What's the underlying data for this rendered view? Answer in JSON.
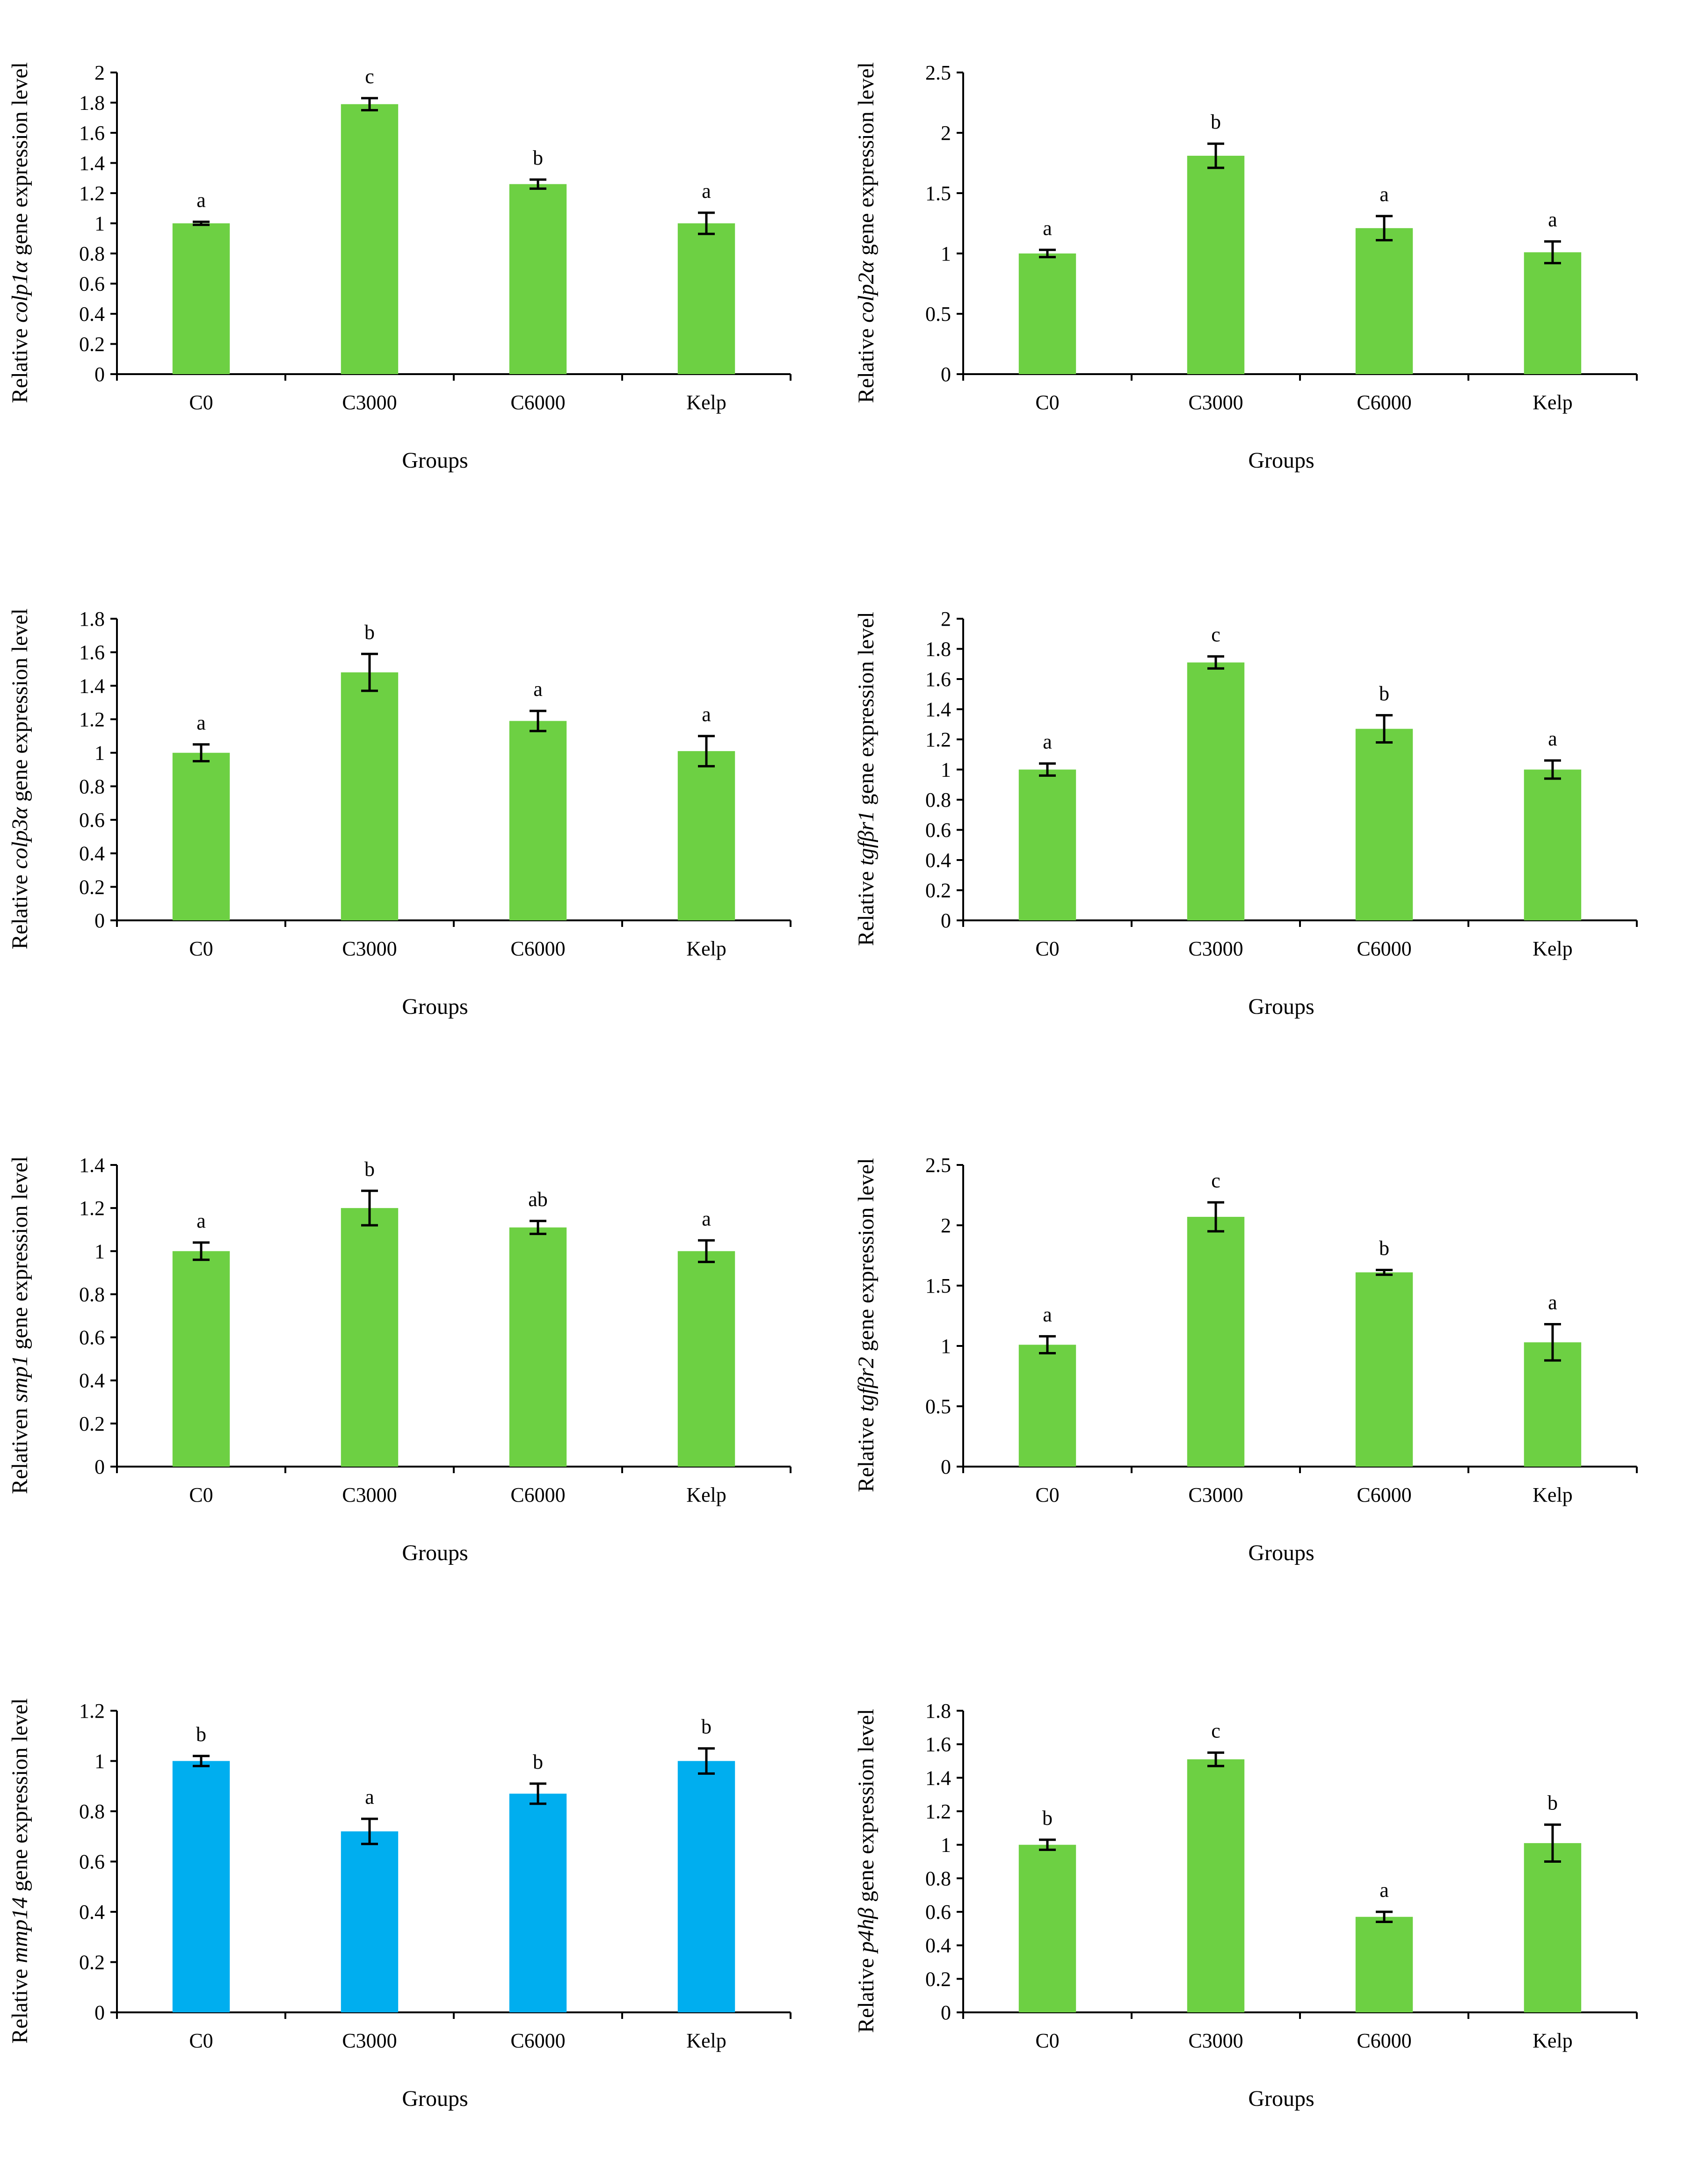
{
  "colors": {
    "green": "#6DD043",
    "blue": "#00AEEF",
    "axis": "#000000"
  },
  "chart_data": [
    {
      "type": "bar",
      "title": "",
      "xlabel": "Groups",
      "ylabel_pre": "Relative ",
      "ylabel_gene": "colp1α",
      "ylabel_post": " gene expression level",
      "categories": [
        "C0",
        "C3000",
        "C6000",
        "Kelp"
      ],
      "values": [
        1.0,
        1.79,
        1.26,
        1.0
      ],
      "errors": [
        0.01,
        0.04,
        0.03,
        0.07
      ],
      "letters": [
        "a",
        "c",
        "b",
        "a"
      ],
      "yticks": [
        "0",
        "0.2",
        "0.4",
        "0.6",
        "0.8",
        "1",
        "1.2",
        "1.4",
        "1.6",
        "1.8",
        "2"
      ],
      "ylim": [
        0,
        2
      ],
      "color": "green"
    },
    {
      "type": "bar",
      "title": "",
      "xlabel": "Groups",
      "ylabel_pre": "Relative ",
      "ylabel_gene": "colp2α",
      "ylabel_post": " gene expression level",
      "categories": [
        "C0",
        "C3000",
        "C6000",
        "Kelp"
      ],
      "values": [
        1.0,
        1.81,
        1.21,
        1.01
      ],
      "errors": [
        0.03,
        0.1,
        0.1,
        0.09
      ],
      "letters": [
        "a",
        "b",
        "a",
        "a"
      ],
      "yticks": [
        "0",
        "0.5",
        "1",
        "1.5",
        "2",
        "2.5"
      ],
      "ylim": [
        0,
        2.5
      ],
      "color": "green"
    },
    {
      "type": "bar",
      "title": "",
      "xlabel": "Groups",
      "ylabel_pre": "Relative ",
      "ylabel_gene": "colp3α",
      "ylabel_post": " gene expression level",
      "categories": [
        "C0",
        "C3000",
        "C6000",
        "Kelp"
      ],
      "values": [
        1.0,
        1.48,
        1.19,
        1.01
      ],
      "errors": [
        0.05,
        0.11,
        0.06,
        0.09
      ],
      "letters": [
        "a",
        "b",
        "a",
        "a"
      ],
      "yticks": [
        "0",
        "0.2",
        "0.4",
        "0.6",
        "0.8",
        "1",
        "1.2",
        "1.4",
        "1.6",
        "1.8"
      ],
      "ylim": [
        0,
        1.8
      ],
      "color": "green"
    },
    {
      "type": "bar",
      "title": "",
      "xlabel": "Groups",
      "ylabel_pre": "Relative ",
      "ylabel_gene": "tgfβr1",
      "ylabel_post": " gene expression level",
      "categories": [
        "C0",
        "C3000",
        "C6000",
        "Kelp"
      ],
      "values": [
        1.0,
        1.71,
        1.27,
        1.0
      ],
      "errors": [
        0.04,
        0.04,
        0.09,
        0.06
      ],
      "letters": [
        "a",
        "c",
        "b",
        "a"
      ],
      "yticks": [
        "0",
        "0.2",
        "0.4",
        "0.6",
        "0.8",
        "1",
        "1.2",
        "1.4",
        "1.6",
        "1.8",
        "2"
      ],
      "ylim": [
        0,
        2
      ],
      "color": "green"
    },
    {
      "type": "bar",
      "title": "",
      "xlabel": "Groups",
      "ylabel_pre": "Relativen ",
      "ylabel_gene": "smp1",
      "ylabel_post": " gene expression level",
      "categories": [
        "C0",
        "C3000",
        "C6000",
        "Kelp"
      ],
      "values": [
        1.0,
        1.2,
        1.11,
        1.0
      ],
      "errors": [
        0.04,
        0.08,
        0.03,
        0.05
      ],
      "letters": [
        "a",
        "b",
        "ab",
        "a"
      ],
      "yticks": [
        "0",
        "0.2",
        "0.4",
        "0.6",
        "0.8",
        "1",
        "1.2",
        "1.4"
      ],
      "ylim": [
        0,
        1.4
      ],
      "color": "green"
    },
    {
      "type": "bar",
      "title": "",
      "xlabel": "Groups",
      "ylabel_pre": "Relative ",
      "ylabel_gene": "tgfβr2",
      "ylabel_post": " gene expression level",
      "categories": [
        "C0",
        "C3000",
        "C6000",
        "Kelp"
      ],
      "values": [
        1.01,
        2.07,
        1.61,
        1.03
      ],
      "errors": [
        0.07,
        0.12,
        0.02,
        0.15
      ],
      "letters": [
        "a",
        "c",
        "b",
        "a"
      ],
      "yticks": [
        "0",
        "0.5",
        "1",
        "1.5",
        "2",
        "2.5"
      ],
      "ylim": [
        0,
        2.5
      ],
      "color": "green"
    },
    {
      "type": "bar",
      "title": "",
      "xlabel": "Groups",
      "ylabel_pre": "Relative ",
      "ylabel_gene": "mmp14",
      "ylabel_post": " gene expression level",
      "categories": [
        "C0",
        "C3000",
        "C6000",
        "Kelp"
      ],
      "values": [
        1.0,
        0.72,
        0.87,
        1.0
      ],
      "errors": [
        0.02,
        0.05,
        0.04,
        0.05
      ],
      "letters": [
        "b",
        "a",
        "b",
        "b"
      ],
      "yticks": [
        "0",
        "0.2",
        "0.4",
        "0.6",
        "0.8",
        "1",
        "1.2"
      ],
      "ylim": [
        0,
        1.2
      ],
      "color": "blue"
    },
    {
      "type": "bar",
      "title": "",
      "xlabel": "Groups",
      "ylabel_pre": "Relative ",
      "ylabel_gene": "p4hβ",
      "ylabel_post": " gene expression level",
      "categories": [
        "C0",
        "C3000",
        "C6000",
        "Kelp"
      ],
      "values": [
        1.0,
        1.51,
        0.57,
        1.01
      ],
      "errors": [
        0.03,
        0.04,
        0.03,
        0.11
      ],
      "letters": [
        "b",
        "c",
        "a",
        "b"
      ],
      "yticks": [
        "0",
        "0.2",
        "0.4",
        "0.6",
        "0.8",
        "1",
        "1.2",
        "1.4",
        "1.6",
        "1.8"
      ],
      "ylim": [
        0,
        1.8
      ],
      "color": "green"
    }
  ]
}
